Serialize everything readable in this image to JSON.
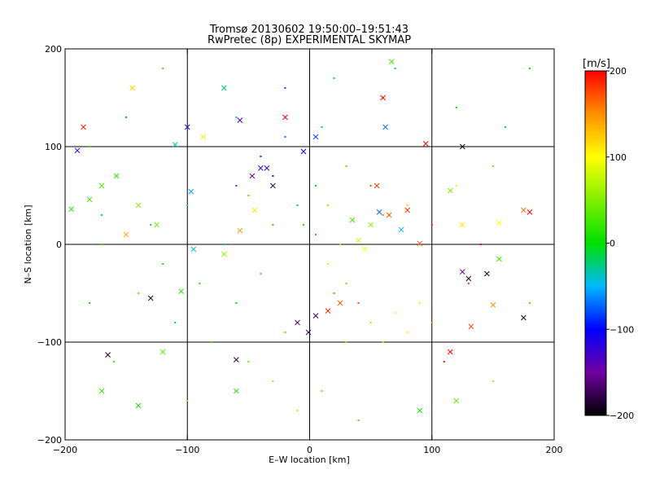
{
  "chart_data": {
    "type": "scatter",
    "title": "Tromsø 20130602 19:50:00–19:51:43",
    "subtitle": "RwPretec (8p) EXPERIMENTAL SKYMAP",
    "xlabel": "E–W location [km]",
    "ylabel": "N–S location [km]",
    "xlim": [
      -200,
      200
    ],
    "ylim": [
      -200,
      200
    ],
    "x_ticks": [
      -200,
      -100,
      0,
      100,
      200
    ],
    "y_ticks": [
      -200,
      -100,
      0,
      100,
      200
    ],
    "x_tick_labels": [
      "−200",
      "−100",
      "0",
      "100",
      "200"
    ],
    "y_tick_labels": [
      "−200",
      "−100",
      "0",
      "100",
      "200"
    ],
    "grid": true,
    "grid_lines": [
      -100,
      0,
      100
    ],
    "colorbar": {
      "label": "[m/s]",
      "min": -200,
      "max": 200,
      "ticks": [
        200,
        100,
        0,
        -100,
        -200
      ],
      "tick_labels": [
        "200",
        "100",
        "0",
        "−100",
        "−200"
      ],
      "stops": [
        {
          "v": -200,
          "color": "#000000"
        },
        {
          "v": -150,
          "color": "#7000a0"
        },
        {
          "v": -100,
          "color": "#0000ff"
        },
        {
          "v": -50,
          "color": "#00b8ff"
        },
        {
          "v": 0,
          "color": "#00e000"
        },
        {
          "v": 100,
          "color": "#ffff00"
        },
        {
          "v": 150,
          "color": "#ff9000"
        },
        {
          "v": 200,
          "color": "#ff0000"
        }
      ]
    },
    "series": [
      {
        "marker": "dot",
        "points": [
          [
            -150,
            130,
            -60
          ],
          [
            -60,
            130,
            -50
          ],
          [
            -20,
            110,
            -70
          ],
          [
            10,
            120,
            -40
          ],
          [
            60,
            150,
            10
          ],
          [
            -100,
            40,
            -40
          ],
          [
            -130,
            20,
            -20
          ],
          [
            -170,
            30,
            0
          ],
          [
            -120,
            -20,
            10
          ],
          [
            -90,
            -40,
            20
          ],
          [
            -60,
            -60,
            0
          ],
          [
            -40,
            -30,
            30
          ],
          [
            -140,
            -50,
            40
          ],
          [
            -110,
            -80,
            -20
          ],
          [
            -80,
            -100,
            20
          ],
          [
            -50,
            -120,
            40
          ],
          [
            -30,
            -140,
            60
          ],
          [
            -20,
            -90,
            30
          ],
          [
            -70,
            0,
            -20
          ],
          [
            -30,
            20,
            10
          ],
          [
            -10,
            40,
            -30
          ],
          [
            5,
            60,
            0
          ],
          [
            -5,
            20,
            20
          ],
          [
            5,
            10,
            -10
          ],
          [
            15,
            40,
            50
          ],
          [
            25,
            0,
            60
          ],
          [
            15,
            -20,
            80
          ],
          [
            30,
            -40,
            140
          ],
          [
            40,
            -60,
            170
          ],
          [
            20,
            -50,
            160
          ],
          [
            50,
            -80,
            130
          ],
          [
            60,
            -100,
            120
          ],
          [
            80,
            -90,
            100
          ],
          [
            70,
            -70,
            90
          ],
          [
            90,
            -60,
            110
          ],
          [
            100,
            -80,
            160
          ],
          [
            30,
            -100,
            60
          ],
          [
            10,
            -150,
            40
          ],
          [
            -10,
            -170,
            70
          ],
          [
            40,
            -180,
            30
          ],
          [
            -100,
            -160,
            50
          ],
          [
            -160,
            -120,
            30
          ],
          [
            -180,
            -60,
            10
          ],
          [
            -170,
            0,
            20
          ],
          [
            -60,
            60,
            -80
          ],
          [
            -30,
            70,
            -120
          ],
          [
            -40,
            90,
            -90
          ],
          [
            -50,
            50,
            150
          ],
          [
            50,
            60,
            180
          ],
          [
            30,
            80,
            150
          ],
          [
            60,
            30,
            160
          ],
          [
            80,
            40,
            120
          ],
          [
            100,
            20,
            190
          ],
          [
            120,
            60,
            90
          ],
          [
            150,
            80,
            40
          ],
          [
            140,
            0,
            200
          ],
          [
            130,
            -40,
            180
          ],
          [
            110,
            -120,
            190
          ],
          [
            150,
            -140,
            60
          ],
          [
            180,
            -60,
            30
          ],
          [
            -100,
            120,
            -30
          ],
          [
            -70,
            160,
            -60
          ],
          [
            -20,
            160,
            -80
          ],
          [
            20,
            170,
            -30
          ],
          [
            70,
            180,
            -50
          ],
          [
            -120,
            180,
            20
          ],
          [
            120,
            140,
            0
          ],
          [
            160,
            120,
            -20
          ],
          [
            180,
            180,
            10
          ],
          [
            -180,
            100,
            30
          ]
        ]
      },
      {
        "marker": "cross",
        "points": [
          [
            -185,
            120,
            190
          ],
          [
            -190,
            96,
            -110
          ],
          [
            -180,
            46,
            20
          ],
          [
            -195,
            36,
            10
          ],
          [
            -170,
            60,
            30
          ],
          [
            -158,
            70,
            20
          ],
          [
            -140,
            40,
            60
          ],
          [
            -125,
            20,
            50
          ],
          [
            -150,
            10,
            140
          ],
          [
            -145,
            160,
            120
          ],
          [
            -110,
            102,
            -30
          ],
          [
            -100,
            120,
            -120
          ],
          [
            -97,
            54,
            -60
          ],
          [
            -95,
            -5,
            -40
          ],
          [
            -105,
            -48,
            20
          ],
          [
            -130,
            -55,
            -180
          ],
          [
            -120,
            -110,
            40
          ],
          [
            -165,
            -113,
            -190
          ],
          [
            -170,
            -150,
            20
          ],
          [
            -140,
            -165,
            10
          ],
          [
            -87,
            110,
            90
          ],
          [
            -70,
            160,
            -20
          ],
          [
            -57,
            127,
            -130
          ],
          [
            -47,
            70,
            -150
          ],
          [
            -40,
            78,
            -130
          ],
          [
            -30,
            60,
            -170
          ],
          [
            -45,
            35,
            110
          ],
          [
            -57,
            14,
            150
          ],
          [
            -70,
            -10,
            60
          ],
          [
            -60,
            -118,
            -180
          ],
          [
            -60,
            -150,
            20
          ],
          [
            -35,
            78,
            -120
          ],
          [
            -20,
            130,
            200
          ],
          [
            -5,
            95,
            -100
          ],
          [
            5,
            110,
            -80
          ],
          [
            -1,
            -90,
            -170
          ],
          [
            5,
            -73,
            -170
          ],
          [
            15,
            -68,
            190
          ],
          [
            25,
            -60,
            170
          ],
          [
            35,
            25,
            30
          ],
          [
            40,
            4,
            80
          ],
          [
            45,
            -5,
            100
          ],
          [
            50,
            20,
            60
          ],
          [
            55,
            60,
            180
          ],
          [
            65,
            30,
            170
          ],
          [
            57,
            33,
            -70
          ],
          [
            62,
            120,
            -70
          ],
          [
            60,
            150,
            200
          ],
          [
            67,
            187,
            30
          ],
          [
            75,
            15,
            -40
          ],
          [
            80,
            35,
            180
          ],
          [
            90,
            1,
            170
          ],
          [
            95,
            103,
            200
          ],
          [
            115,
            55,
            50
          ],
          [
            125,
            20,
            110
          ],
          [
            125,
            -28,
            -150
          ],
          [
            130,
            -35,
            -190
          ],
          [
            145,
            -30,
            -190
          ],
          [
            150,
            -62,
            150
          ],
          [
            155,
            -15,
            30
          ],
          [
            155,
            22,
            100
          ],
          [
            175,
            -75,
            -190
          ],
          [
            180,
            33,
            200
          ],
          [
            175,
            35,
            160
          ],
          [
            132,
            -84,
            180
          ],
          [
            125,
            100,
            -190
          ],
          [
            115,
            -110,
            200
          ],
          [
            120,
            -160,
            40
          ],
          [
            90,
            -170,
            10
          ],
          [
            -10,
            -80,
            -160
          ]
        ]
      }
    ]
  }
}
